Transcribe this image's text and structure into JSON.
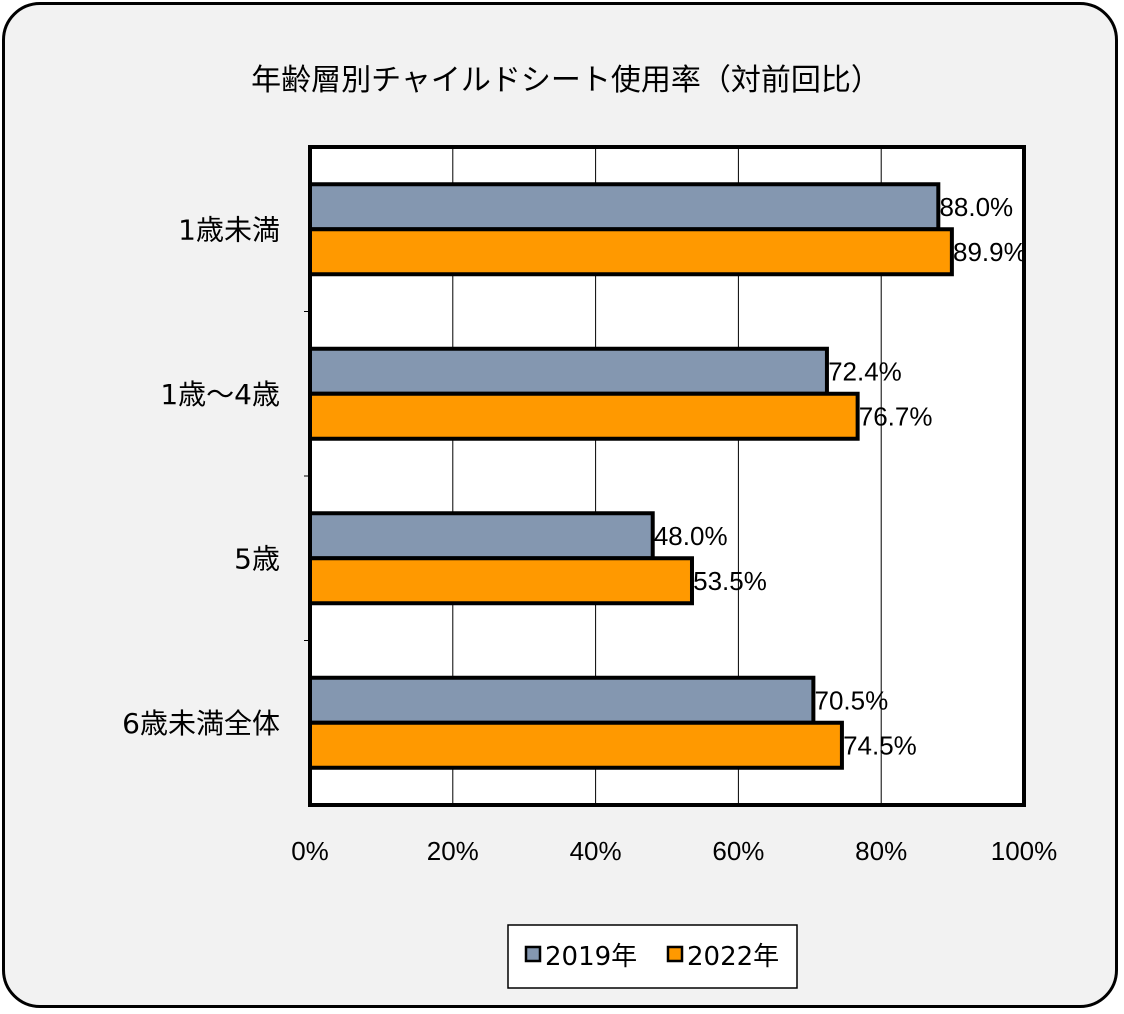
{
  "chart_data": {
    "type": "bar",
    "orientation": "horizontal",
    "title": "年齢層別チャイルドシート使用率（対前回比）",
    "categories": [
      "1歳未満",
      "1歳～4歳",
      "5歳",
      "6歳未満全体"
    ],
    "series": [
      {
        "name": "2019年",
        "color": "#8497b0",
        "values": [
          88.0,
          72.4,
          48.0,
          70.5
        ],
        "labels": [
          "88.0%",
          "72.4%",
          "48.0%",
          "70.5%"
        ]
      },
      {
        "name": "2022年",
        "color": "#ff9900",
        "values": [
          89.9,
          76.7,
          53.5,
          74.5
        ],
        "labels": [
          "89.9%",
          "76.7%",
          "53.5%",
          "74.5%"
        ]
      }
    ],
    "xlim": [
      0,
      100
    ],
    "xticks": [
      "0%",
      "20%",
      "40%",
      "60%",
      "80%",
      "100%"
    ],
    "grid": true,
    "legend_position": "bottom",
    "plot_background": "#ffffff",
    "frame_background": "#f2f2f2"
  }
}
